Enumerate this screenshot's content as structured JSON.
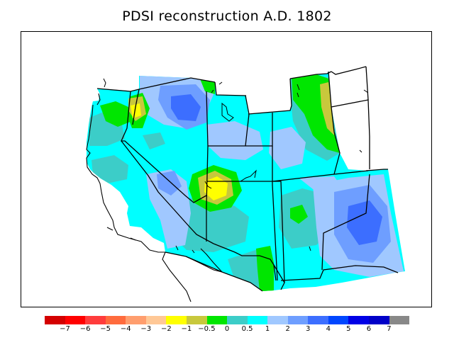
{
  "title": "PDSI reconstruction A.D. 1802",
  "legend": {
    "colors": [
      "#d40000",
      "#ff0000",
      "#ff3c3c",
      "#ff6b3d",
      "#ff9e6e",
      "#ffc896",
      "#ffff00",
      "#c8c83c",
      "#00e600",
      "#3ccdc8",
      "#00ffff",
      "#a0c8ff",
      "#6e9eff",
      "#3c6eff",
      "#0046ff",
      "#0000e6",
      "#0000c8",
      "#888888"
    ],
    "ticks": [
      "−7",
      "−6",
      "−5",
      "−4",
      "−3",
      "−2",
      "−1",
      "−0.5",
      "0",
      "0.5",
      "1",
      "2",
      "3",
      "4",
      "5",
      "6",
      "7"
    ]
  },
  "map": {
    "region": "western-united-states",
    "background_color": "#ffffff",
    "field_value_level": "0.5 to 1",
    "wet_center_level": "3 to 4",
    "dry_center_level": "-2 to -1"
  }
}
